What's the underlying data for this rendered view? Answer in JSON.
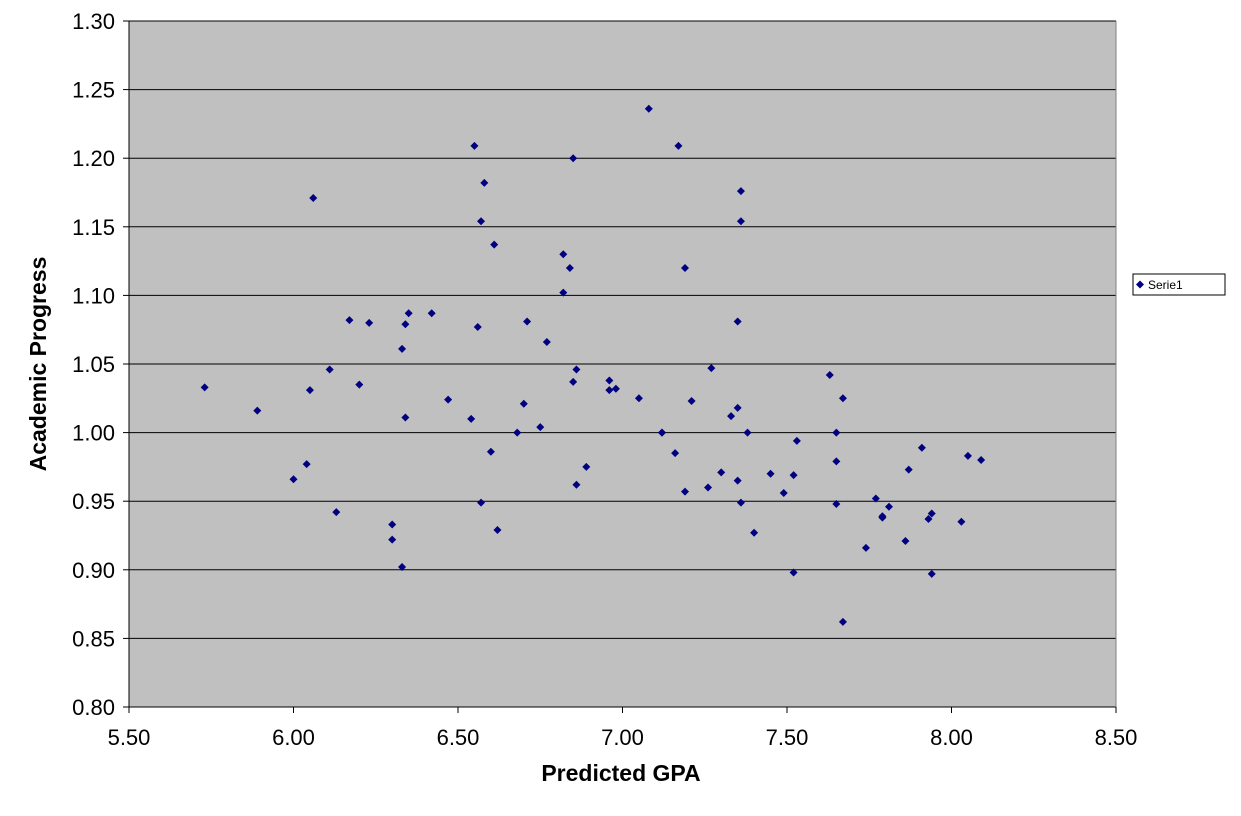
{
  "chart_data": {
    "type": "scatter",
    "xlabel": "Predicted GPA",
    "ylabel": "Academic Progress",
    "xlim": [
      5.5,
      8.5
    ],
    "ylim": [
      0.8,
      1.3
    ],
    "xticks": [
      "5.50",
      "6.00",
      "6.50",
      "7.00",
      "7.50",
      "8.00",
      "8.50"
    ],
    "yticks": [
      "0.80",
      "0.85",
      "0.90",
      "0.95",
      "1.00",
      "1.05",
      "1.10",
      "1.15",
      "1.20",
      "1.25",
      "1.30"
    ],
    "grid": "horizontal",
    "legend_position": "right",
    "plot_background": "#C0C0C0",
    "marker_color": "#000080",
    "series": [
      {
        "name": "Serie1",
        "x": [
          5.73,
          5.89,
          6.0,
          6.04,
          6.05,
          6.06,
          6.11,
          6.13,
          6.17,
          6.2,
          6.23,
          6.3,
          6.3,
          6.33,
          6.33,
          6.34,
          6.34,
          6.35,
          6.42,
          6.47,
          6.54,
          6.55,
          6.56,
          6.57,
          6.57,
          6.58,
          6.6,
          6.61,
          6.62,
          6.68,
          6.7,
          6.71,
          6.75,
          6.77,
          6.82,
          6.82,
          6.84,
          6.85,
          6.85,
          6.86,
          6.86,
          6.89,
          6.96,
          6.96,
          6.98,
          7.05,
          7.08,
          7.12,
          7.12,
          7.16,
          7.17,
          7.19,
          7.19,
          7.21,
          7.26,
          7.27,
          7.3,
          7.33,
          7.35,
          7.35,
          7.35,
          7.36,
          7.36,
          7.36,
          7.38,
          7.4,
          7.45,
          7.49,
          7.52,
          7.52,
          7.53,
          7.63,
          7.65,
          7.65,
          7.65,
          7.67,
          7.67,
          7.74,
          7.77,
          7.79,
          7.79,
          7.81,
          7.86,
          7.87,
          7.91,
          7.93,
          7.94,
          7.94,
          8.03,
          8.05,
          8.09
        ],
        "y": [
          1.033,
          1.016,
          0.966,
          0.977,
          1.031,
          1.171,
          1.046,
          0.942,
          1.082,
          1.035,
          1.08,
          0.933,
          0.922,
          0.902,
          1.061,
          1.079,
          1.011,
          1.087,
          1.087,
          1.024,
          1.01,
          1.209,
          1.077,
          1.154,
          0.949,
          1.182,
          0.986,
          1.137,
          0.929,
          1.0,
          1.021,
          1.081,
          1.004,
          1.066,
          1.102,
          1.13,
          1.12,
          1.2,
          1.037,
          1.046,
          0.962,
          0.975,
          1.038,
          1.031,
          1.032,
          1.025,
          1.236,
          1.0,
          1.0,
          0.985,
          1.209,
          1.12,
          0.957,
          1.023,
          0.96,
          1.047,
          0.971,
          1.012,
          1.081,
          1.018,
          0.965,
          1.176,
          1.154,
          0.949,
          1.0,
          0.927,
          0.97,
          0.956,
          0.898,
          0.969,
          0.994,
          1.042,
          1.0,
          0.948,
          0.979,
          0.862,
          1.025,
          0.916,
          0.952,
          0.938,
          0.939,
          0.946,
          0.921,
          0.973,
          0.989,
          0.937,
          0.897,
          0.941,
          0.935,
          0.983,
          0.98
        ]
      }
    ]
  }
}
